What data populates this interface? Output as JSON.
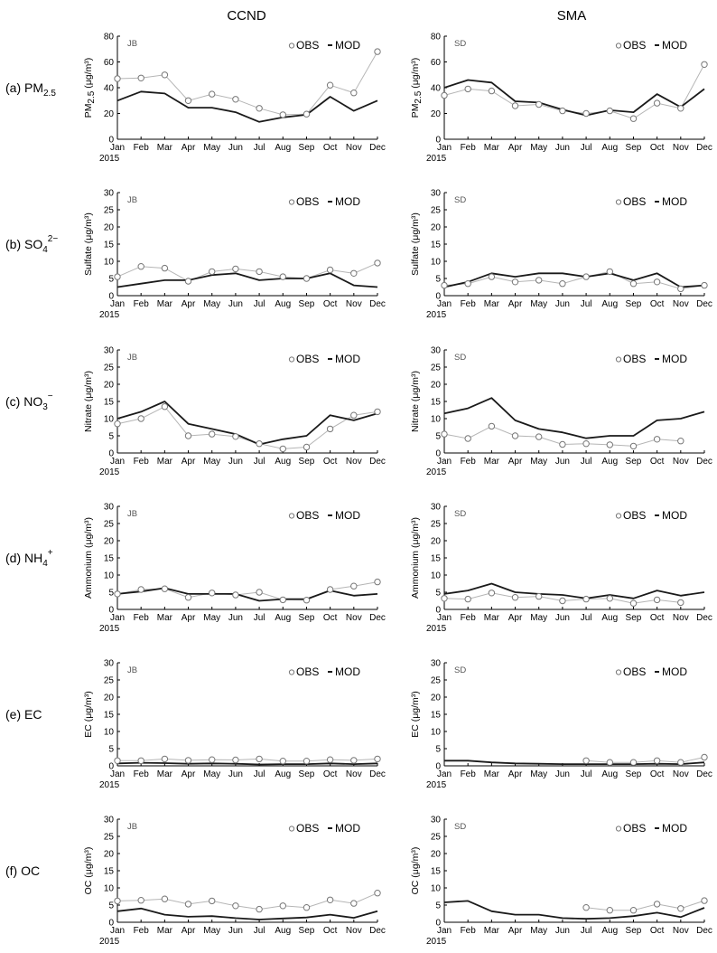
{
  "columns": [
    "CCND",
    "SMA"
  ],
  "year_label": "2015",
  "legend": {
    "obs": "OBS",
    "mod": "MOD"
  },
  "months": [
    "Jan",
    "Feb",
    "Mar",
    "Apr",
    "May",
    "Jun",
    "Jul",
    "Aug",
    "Sep",
    "Oct",
    "Nov",
    "Dec"
  ],
  "colors": {
    "obs": "#b5b5b5",
    "mod": "#1a1a1a",
    "axis": "#000000"
  },
  "rows": [
    {
      "label": "(a) PM",
      "label_sub": "2.5",
      "label_sup": ""
    },
    {
      "label": "(b) SO",
      "label_sub": "4",
      "label_sup": "2−"
    },
    {
      "label": "(c) NO",
      "label_sub": "3",
      "label_sup": "−"
    },
    {
      "label": "(d) NH",
      "label_sub": "4",
      "label_sup": "+"
    },
    {
      "label": "(e) EC",
      "label_sub": "",
      "label_sup": ""
    },
    {
      "label": "(f) OC",
      "label_sub": "",
      "label_sup": ""
    }
  ],
  "chart_data": [
    {
      "type": "line",
      "row": 0,
      "col": 0,
      "site": "JB",
      "ylabel_main": "PM",
      "ylabel_sub": "2.5",
      "ylabel_rest": " (μg/m³)",
      "ylim": [
        0,
        80
      ],
      "yticks": [
        0,
        20,
        40,
        60,
        80
      ],
      "series": [
        {
          "name": "OBS",
          "values": [
            47,
            47.5,
            50,
            30,
            35,
            31,
            24,
            19,
            19.5,
            42,
            36,
            68
          ]
        },
        {
          "name": "MOD",
          "values": [
            30,
            37,
            35.5,
            24.5,
            24.5,
            21,
            13.5,
            17,
            19,
            33,
            22,
            30
          ]
        }
      ]
    },
    {
      "type": "line",
      "row": 0,
      "col": 1,
      "site": "SD",
      "ylabel_main": "PM",
      "ylabel_sub": "2.5",
      "ylabel_rest": " (μg/m³)",
      "ylim": [
        0,
        80
      ],
      "yticks": [
        0,
        20,
        40,
        60,
        80
      ],
      "series": [
        {
          "name": "OBS",
          "values": [
            34,
            39,
            37.5,
            26,
            27,
            22,
            20,
            22,
            16,
            28,
            24,
            58
          ]
        },
        {
          "name": "MOD",
          "values": [
            40,
            46,
            44,
            29.5,
            28.5,
            23,
            18.5,
            22.5,
            21,
            35,
            25,
            39
          ]
        }
      ]
    },
    {
      "type": "line",
      "row": 1,
      "col": 0,
      "site": "JB",
      "ylabel_main": "Sulfate",
      "ylabel_sub": "",
      "ylabel_rest": " (μg/m³)",
      "ylim": [
        0,
        30
      ],
      "yticks": [
        0,
        5,
        10,
        15,
        20,
        25,
        30
      ],
      "series": [
        {
          "name": "OBS",
          "values": [
            5.5,
            8.5,
            8,
            4.2,
            7,
            7.8,
            7,
            5.5,
            5,
            7.5,
            6.5,
            9.5
          ]
        },
        {
          "name": "MOD",
          "values": [
            2.5,
            3.5,
            4.5,
            4.5,
            6,
            6.5,
            4.5,
            5,
            5,
            6.5,
            3,
            2.5
          ]
        }
      ]
    },
    {
      "type": "line",
      "row": 1,
      "col": 1,
      "site": "SD",
      "ylabel_main": "Sulfate",
      "ylabel_sub": "",
      "ylabel_rest": " (μg/m³)",
      "ylim": [
        0,
        30
      ],
      "yticks": [
        0,
        5,
        10,
        15,
        20,
        25,
        30
      ],
      "series": [
        {
          "name": "OBS",
          "values": [
            3,
            3.5,
            5.5,
            4,
            4.5,
            3.5,
            5.5,
            7,
            3.5,
            4,
            2,
            3
          ]
        },
        {
          "name": "MOD",
          "values": [
            2.5,
            4,
            6.5,
            5.5,
            6.5,
            6.5,
            5.5,
            6.5,
            4.5,
            6.5,
            2.5,
            3
          ]
        }
      ]
    },
    {
      "type": "line",
      "row": 2,
      "col": 0,
      "site": "JB",
      "ylabel_main": "Nitrate",
      "ylabel_sub": "",
      "ylabel_rest": " (μg/m³)",
      "ylim": [
        0,
        30
      ],
      "yticks": [
        0,
        5,
        10,
        15,
        20,
        25,
        30
      ],
      "series": [
        {
          "name": "OBS",
          "values": [
            8.5,
            10,
            13.5,
            5,
            5.5,
            4.8,
            2.7,
            1.2,
            1.7,
            7,
            11,
            12
          ]
        },
        {
          "name": "MOD",
          "values": [
            10,
            12,
            15,
            8.5,
            7,
            5.5,
            2.5,
            4,
            5,
            11,
            9.5,
            11.5
          ]
        }
      ]
    },
    {
      "type": "line",
      "row": 2,
      "col": 1,
      "site": "SD",
      "ylabel_main": "Nitrate",
      "ylabel_sub": "",
      "ylabel_rest": " (μg/m³)",
      "ylim": [
        0,
        30
      ],
      "yticks": [
        0,
        5,
        10,
        15,
        20,
        25,
        30
      ],
      "series": [
        {
          "name": "OBS",
          "values": [
            5.5,
            4.2,
            7.8,
            5,
            4.7,
            2.5,
            2.7,
            2.4,
            2,
            4,
            3.5,
            null
          ]
        },
        {
          "name": "MOD",
          "values": [
            11.5,
            13,
            16,
            9.5,
            7,
            6,
            4.3,
            5,
            5,
            9.5,
            10,
            12
          ]
        }
      ]
    },
    {
      "type": "line",
      "row": 3,
      "col": 0,
      "site": "JB",
      "ylabel_main": "Ammonium",
      "ylabel_sub": "",
      "ylabel_rest": " (μg/m³)",
      "ylim": [
        0,
        30
      ],
      "yticks": [
        0,
        5,
        10,
        15,
        20,
        25,
        30
      ],
      "series": [
        {
          "name": "OBS",
          "values": [
            4.5,
            5.8,
            6,
            3.5,
            4.8,
            4.2,
            5,
            2.8,
            2.7,
            5.8,
            6.8,
            8
          ]
        },
        {
          "name": "MOD",
          "values": [
            4.5,
            5.2,
            6.2,
            4.5,
            4.5,
            4.5,
            2.5,
            3,
            3,
            5.5,
            4,
            4.5
          ]
        }
      ]
    },
    {
      "type": "line",
      "row": 3,
      "col": 1,
      "site": "SD",
      "ylabel_main": "Ammonium",
      "ylabel_sub": "",
      "ylabel_rest": " (μg/m³)",
      "ylim": [
        0,
        30
      ],
      "yticks": [
        0,
        5,
        10,
        15,
        20,
        25,
        30
      ],
      "series": [
        {
          "name": "OBS",
          "values": [
            3.2,
            3,
            4.8,
            3.5,
            3.8,
            2.5,
            3,
            3.2,
            1.8,
            2.8,
            2,
            null
          ]
        },
        {
          "name": "MOD",
          "values": [
            4.5,
            5.5,
            7.5,
            5,
            4.5,
            4.2,
            3.2,
            4.2,
            3.2,
            5.5,
            4,
            5
          ]
        }
      ]
    },
    {
      "type": "line",
      "row": 4,
      "col": 0,
      "site": "JB",
      "ylabel_main": "EC",
      "ylabel_sub": "",
      "ylabel_rest": " (μg/m³)",
      "ylim": [
        0,
        30
      ],
      "yticks": [
        0,
        5,
        10,
        15,
        20,
        25,
        30
      ],
      "series": [
        {
          "name": "OBS",
          "values": [
            1.5,
            1.5,
            2,
            1.6,
            1.8,
            1.7,
            2,
            1.4,
            1.4,
            1.8,
            1.6,
            2
          ]
        },
        {
          "name": "MOD",
          "values": [
            0.7,
            0.9,
            0.8,
            0.6,
            0.7,
            0.6,
            0.4,
            0.5,
            0.5,
            0.7,
            0.5,
            0.7
          ]
        }
      ]
    },
    {
      "type": "line",
      "row": 4,
      "col": 1,
      "site": "SD",
      "ylabel_main": "EC",
      "ylabel_sub": "",
      "ylabel_rest": " (μg/m³)",
      "ylim": [
        0,
        30
      ],
      "yticks": [
        0,
        5,
        10,
        15,
        20,
        25,
        30
      ],
      "series": [
        {
          "name": "OBS",
          "values": [
            null,
            null,
            null,
            null,
            null,
            null,
            1.5,
            1,
            1,
            1.5,
            1,
            2.5
          ]
        },
        {
          "name": "MOD",
          "values": [
            1.5,
            1.5,
            1,
            0.7,
            0.6,
            0.5,
            0.5,
            0.5,
            0.5,
            0.6,
            0.5,
            1
          ]
        }
      ]
    },
    {
      "type": "line",
      "row": 5,
      "col": 0,
      "site": "JB",
      "ylabel_main": "OC",
      "ylabel_sub": "",
      "ylabel_rest": " (μg/m³)",
      "ylim": [
        0,
        30
      ],
      "yticks": [
        0,
        5,
        10,
        15,
        20,
        25,
        30
      ],
      "series": [
        {
          "name": "OBS",
          "values": [
            6.2,
            6.4,
            6.8,
            5.3,
            6.2,
            4.8,
            3.8,
            4.8,
            4.3,
            6.5,
            5.5,
            8.5
          ]
        },
        {
          "name": "MOD",
          "values": [
            3.2,
            4,
            2.2,
            1.6,
            1.8,
            1.2,
            0.8,
            1.1,
            1.4,
            2.2,
            1.3,
            3.2
          ]
        }
      ]
    },
    {
      "type": "line",
      "row": 5,
      "col": 1,
      "site": "SD",
      "ylabel_main": "OC",
      "ylabel_sub": "",
      "ylabel_rest": " (μg/m³)",
      "ylim": [
        0,
        30
      ],
      "yticks": [
        0,
        5,
        10,
        15,
        20,
        25,
        30
      ],
      "series": [
        {
          "name": "OBS",
          "values": [
            null,
            null,
            null,
            null,
            null,
            null,
            4.3,
            3.5,
            3.5,
            5.3,
            4,
            6.3
          ]
        },
        {
          "name": "MOD",
          "values": [
            5.8,
            6.2,
            3.2,
            2.2,
            2.2,
            1.2,
            1,
            1.2,
            1.8,
            2.8,
            1.5,
            4.2
          ]
        }
      ]
    }
  ]
}
